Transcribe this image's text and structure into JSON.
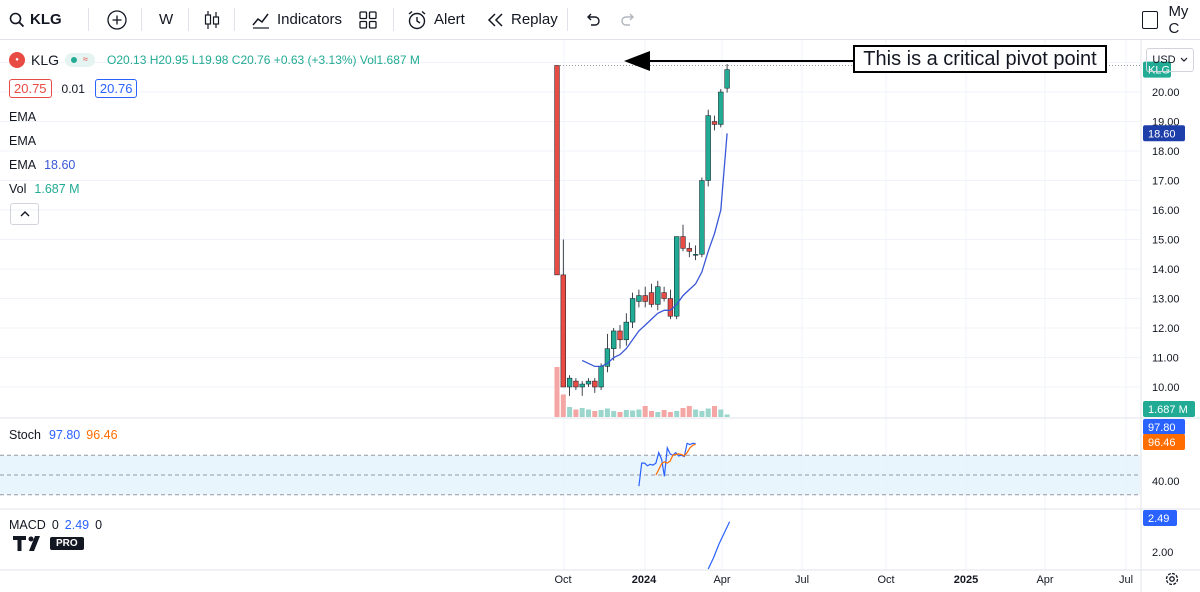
{
  "toolbar": {
    "symbol": "KLG",
    "interval": "W",
    "indicators": "Indicators",
    "alert": "Alert",
    "replay": "Replay",
    "right_text": "My C"
  },
  "legend": {
    "name": "KLG",
    "ohlc": "O20.13 H20.95 L19.98 C20.76 +0.63 (+3.13%) Vol1.687 M",
    "bid": "20.75",
    "spread": "0.01",
    "ask": "20.76",
    "ema1": "EMA",
    "ema2": "EMA",
    "ema3_label": "EMA",
    "ema3_value": "18.60",
    "vol_label": "Vol",
    "vol_value": "1.687 M"
  },
  "annotation": "This is a critical pivot point",
  "axis": {
    "currency": "USD",
    "ticks": [
      "20.00",
      "19.00",
      "18.00",
      "17.00",
      "16.00",
      "15.00",
      "14.00",
      "13.00",
      "12.00",
      "11.00",
      "10.00"
    ],
    "symbol_tag": "KLG",
    "ema_tag": "18.60",
    "vol_tag": "1.687 M",
    "stoch_k_tag": "97.80",
    "stoch_d_tag": "96.46",
    "stoch_tick": "40.00",
    "macd_tag": "2.49",
    "macd_tick": "2.00"
  },
  "stoch": {
    "label": "Stoch",
    "k": "97.80",
    "d": "96.46"
  },
  "macd": {
    "label": "MACD",
    "v1": "0",
    "v2": "2.49",
    "v3": "0"
  },
  "time_axis": [
    "Oct",
    "2024",
    "Apr",
    "Jul",
    "Oct",
    "2025",
    "Apr",
    "Jul"
  ],
  "logo": "PRO",
  "colors": {
    "up": "#22ab94",
    "down": "#e84a44",
    "ema": "#3a57d6",
    "stoch_k": "#2962ff",
    "stoch_d": "#ff6d00"
  },
  "chart_data": {
    "type": "candlestick",
    "symbol": "KLG",
    "interval": "W",
    "candles": [
      {
        "o": 20.9,
        "h": 20.9,
        "l": 13.8,
        "c": 13.8
      },
      {
        "o": 13.8,
        "h": 15.0,
        "l": 10.0,
        "c": 10.0
      },
      {
        "o": 10.0,
        "h": 10.4,
        "l": 9.7,
        "c": 10.3
      },
      {
        "o": 10.2,
        "h": 10.3,
        "l": 9.9,
        "c": 10.0
      },
      {
        "o": 10.0,
        "h": 10.2,
        "l": 9.7,
        "c": 10.1
      },
      {
        "o": 10.1,
        "h": 10.3,
        "l": 10.0,
        "c": 10.2
      },
      {
        "o": 10.2,
        "h": 10.3,
        "l": 9.8,
        "c": 10.0
      },
      {
        "o": 10.0,
        "h": 10.8,
        "l": 9.9,
        "c": 10.7
      },
      {
        "o": 10.7,
        "h": 11.8,
        "l": 10.5,
        "c": 11.3
      },
      {
        "o": 11.3,
        "h": 12.0,
        "l": 10.9,
        "c": 11.9
      },
      {
        "o": 11.9,
        "h": 12.1,
        "l": 11.3,
        "c": 11.6
      },
      {
        "o": 11.6,
        "h": 12.5,
        "l": 11.4,
        "c": 12.2
      },
      {
        "o": 12.2,
        "h": 13.2,
        "l": 12.0,
        "c": 13.0
      },
      {
        "o": 12.9,
        "h": 13.3,
        "l": 12.7,
        "c": 13.1
      },
      {
        "o": 13.1,
        "h": 13.4,
        "l": 12.7,
        "c": 12.9
      },
      {
        "o": 13.2,
        "h": 13.5,
        "l": 12.7,
        "c": 12.8
      },
      {
        "o": 12.8,
        "h": 13.6,
        "l": 12.6,
        "c": 13.4
      },
      {
        "o": 13.2,
        "h": 13.4,
        "l": 12.9,
        "c": 13.0
      },
      {
        "o": 13.0,
        "h": 13.3,
        "l": 12.3,
        "c": 12.4
      },
      {
        "o": 12.4,
        "h": 15.1,
        "l": 12.3,
        "c": 15.1
      },
      {
        "o": 15.1,
        "h": 15.5,
        "l": 14.6,
        "c": 14.7
      },
      {
        "o": 14.7,
        "h": 14.9,
        "l": 14.4,
        "c": 14.6
      },
      {
        "o": 14.5,
        "h": 14.8,
        "l": 14.3,
        "c": 14.5
      },
      {
        "o": 14.5,
        "h": 17.1,
        "l": 14.4,
        "c": 17.0
      },
      {
        "o": 17.0,
        "h": 19.4,
        "l": 16.8,
        "c": 19.2
      },
      {
        "o": 19.0,
        "h": 19.2,
        "l": 18.7,
        "c": 18.9
      },
      {
        "o": 18.9,
        "h": 20.1,
        "l": 18.8,
        "c": 20.0
      },
      {
        "o": 20.13,
        "h": 20.95,
        "l": 19.98,
        "c": 20.76
      }
    ],
    "volume_relative": [
      1.0,
      0.45,
      0.2,
      0.15,
      0.18,
      0.15,
      0.12,
      0.14,
      0.17,
      0.12,
      0.1,
      0.14,
      0.13,
      0.15,
      0.22,
      0.12,
      0.1,
      0.14,
      0.1,
      0.12,
      0.18,
      0.22,
      0.15,
      0.12,
      0.17,
      0.22,
      0.15,
      0.05
    ],
    "ema": [
      null,
      null,
      null,
      null,
      10.9,
      10.8,
      10.7,
      10.7,
      10.8,
      11.0,
      11.1,
      11.3,
      11.6,
      11.9,
      12.1,
      12.3,
      12.5,
      12.6,
      12.6,
      12.8,
      13.1,
      13.3,
      13.5,
      13.9,
      14.6,
      15.2,
      16.0,
      18.6
    ],
    "stoch_k": [
      33,
      68,
      68,
      64,
      66,
      65,
      68,
      84,
      74,
      48,
      91,
      82,
      80,
      84,
      79,
      80,
      78,
      98,
      96,
      98,
      97.8
    ],
    "stoch_d": [
      null,
      null,
      null,
      null,
      null,
      null,
      50,
      58,
      67,
      70,
      68,
      71,
      80,
      81,
      82,
      81,
      79,
      84,
      91,
      95,
      96.46
    ],
    "macd": [
      0.0,
      0.6,
      1.3,
      1.9,
      2.49
    ]
  }
}
